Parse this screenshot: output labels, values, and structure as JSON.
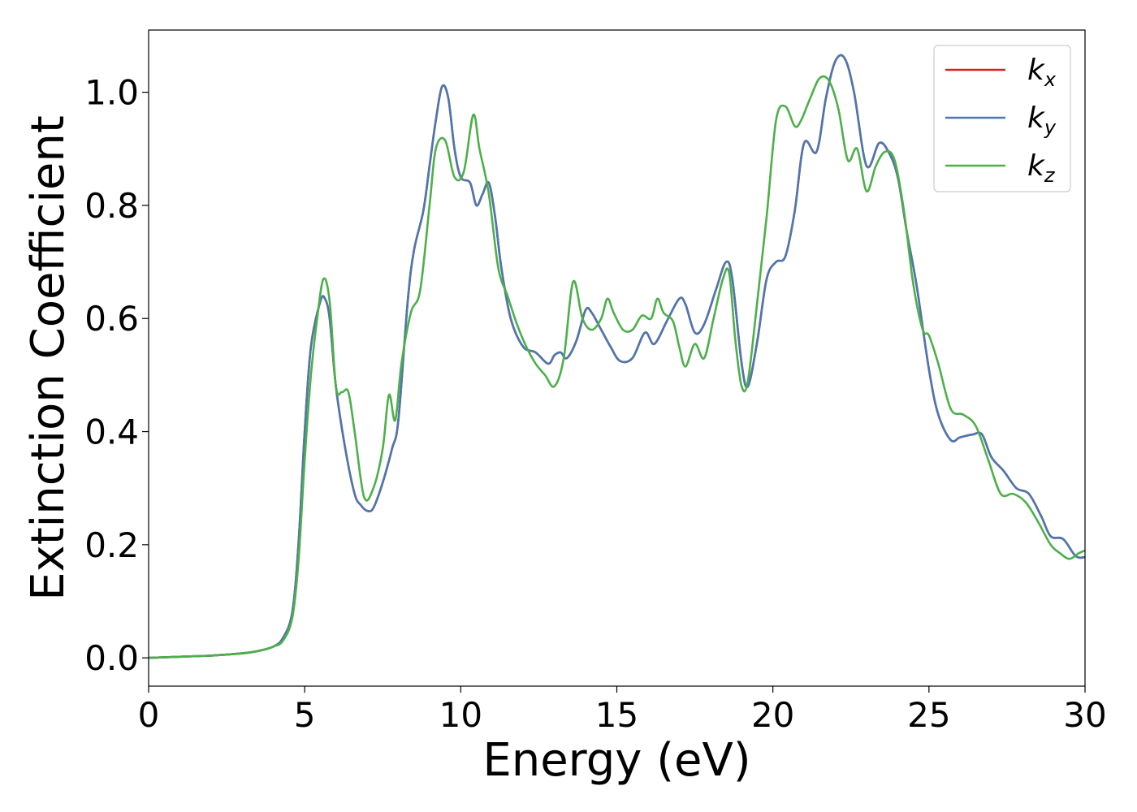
{
  "chart_data": {
    "type": "line",
    "title": "",
    "xlabel": "Energy (eV)",
    "ylabel": "Extinction Coefficient",
    "xlim": [
      0,
      30
    ],
    "ylim": [
      -0.05,
      1.11
    ],
    "xticks": [
      0,
      5,
      10,
      15,
      20,
      25,
      30
    ],
    "xtick_labels": [
      "0",
      "5",
      "10",
      "15",
      "20",
      "25",
      "30"
    ],
    "yticks": [
      0.0,
      0.2,
      0.4,
      0.6,
      0.8,
      1.0
    ],
    "ytick_labels": [
      "0.0",
      "0.2",
      "0.4",
      "0.6",
      "0.8",
      "1.0"
    ],
    "grid": false,
    "legend_position": "top-right",
    "series": [
      {
        "name": "k_x",
        "label_main": "k",
        "label_sub": "x",
        "color": "#e41a1c",
        "x": [
          0,
          1,
          2,
          3,
          3.5,
          4,
          4.3,
          4.6,
          4.8,
          5.0,
          5.2,
          5.5,
          5.65,
          5.8,
          6.0,
          6.3,
          6.6,
          6.8,
          7.0,
          7.2,
          7.5,
          7.8,
          8.0,
          8.3,
          8.5,
          8.8,
          9.0,
          9.2,
          9.4,
          9.6,
          9.8,
          10.0,
          10.3,
          10.5,
          10.7,
          10.9,
          11.1,
          11.3,
          11.6,
          12.0,
          12.4,
          12.8,
          13.0,
          13.2,
          13.4,
          13.7,
          14.0,
          14.2,
          14.5,
          14.8,
          15.1,
          15.5,
          15.9,
          16.2,
          16.6,
          17.0,
          17.2,
          17.5,
          17.8,
          18.2,
          18.5,
          18.7,
          19.0,
          19.2,
          19.5,
          19.8,
          20.1,
          20.4,
          20.7,
          21.0,
          21.4,
          21.7,
          22.0,
          22.3,
          22.6,
          23.0,
          23.4,
          23.7,
          24.0,
          24.3,
          24.6,
          25.0,
          25.3,
          25.7,
          26.0,
          26.4,
          26.7,
          27.0,
          27.4,
          27.8,
          28.2,
          28.6,
          28.9,
          29.3,
          29.7,
          30.0
        ],
        "y": [
          0.0,
          0.002,
          0.004,
          0.008,
          0.012,
          0.02,
          0.035,
          0.08,
          0.2,
          0.4,
          0.55,
          0.63,
          0.635,
          0.6,
          0.48,
          0.37,
          0.29,
          0.27,
          0.26,
          0.265,
          0.31,
          0.37,
          0.42,
          0.63,
          0.72,
          0.79,
          0.87,
          0.95,
          1.01,
          0.99,
          0.9,
          0.85,
          0.84,
          0.8,
          0.82,
          0.84,
          0.78,
          0.69,
          0.6,
          0.55,
          0.54,
          0.52,
          0.535,
          0.54,
          0.53,
          0.56,
          0.615,
          0.61,
          0.58,
          0.55,
          0.525,
          0.53,
          0.575,
          0.555,
          0.595,
          0.635,
          0.625,
          0.575,
          0.59,
          0.655,
          0.7,
          0.67,
          0.52,
          0.48,
          0.56,
          0.67,
          0.7,
          0.71,
          0.79,
          0.91,
          0.895,
          0.99,
          1.055,
          1.06,
          1.0,
          0.87,
          0.91,
          0.895,
          0.85,
          0.75,
          0.66,
          0.51,
          0.43,
          0.385,
          0.39,
          0.395,
          0.395,
          0.355,
          0.33,
          0.3,
          0.29,
          0.25,
          0.215,
          0.21,
          0.18,
          0.178
        ]
      },
      {
        "name": "k_y",
        "label_main": "k",
        "label_sub": "y",
        "color": "#4a78b0",
        "x": [
          0,
          1,
          2,
          3,
          3.5,
          4,
          4.3,
          4.6,
          4.8,
          5.0,
          5.2,
          5.5,
          5.65,
          5.8,
          6.0,
          6.3,
          6.6,
          6.8,
          7.0,
          7.2,
          7.5,
          7.8,
          8.0,
          8.3,
          8.5,
          8.8,
          9.0,
          9.2,
          9.4,
          9.6,
          9.8,
          10.0,
          10.3,
          10.5,
          10.7,
          10.9,
          11.1,
          11.3,
          11.6,
          12.0,
          12.4,
          12.8,
          13.0,
          13.2,
          13.4,
          13.7,
          14.0,
          14.2,
          14.5,
          14.8,
          15.1,
          15.5,
          15.9,
          16.2,
          16.6,
          17.0,
          17.2,
          17.5,
          17.8,
          18.2,
          18.5,
          18.7,
          19.0,
          19.2,
          19.5,
          19.8,
          20.1,
          20.4,
          20.7,
          21.0,
          21.4,
          21.7,
          22.0,
          22.3,
          22.6,
          23.0,
          23.4,
          23.7,
          24.0,
          24.3,
          24.6,
          25.0,
          25.3,
          25.7,
          26.0,
          26.4,
          26.7,
          27.0,
          27.4,
          27.8,
          28.2,
          28.6,
          28.9,
          29.3,
          29.7,
          30.0
        ],
        "y": [
          0.0,
          0.002,
          0.004,
          0.008,
          0.012,
          0.02,
          0.035,
          0.08,
          0.2,
          0.4,
          0.55,
          0.63,
          0.635,
          0.6,
          0.48,
          0.37,
          0.29,
          0.27,
          0.26,
          0.265,
          0.31,
          0.37,
          0.42,
          0.63,
          0.72,
          0.79,
          0.87,
          0.95,
          1.01,
          0.99,
          0.9,
          0.85,
          0.84,
          0.8,
          0.82,
          0.84,
          0.78,
          0.69,
          0.6,
          0.55,
          0.54,
          0.52,
          0.535,
          0.54,
          0.53,
          0.56,
          0.615,
          0.61,
          0.58,
          0.55,
          0.525,
          0.53,
          0.575,
          0.555,
          0.595,
          0.635,
          0.625,
          0.575,
          0.59,
          0.655,
          0.7,
          0.67,
          0.52,
          0.48,
          0.56,
          0.67,
          0.7,
          0.71,
          0.79,
          0.91,
          0.895,
          0.99,
          1.055,
          1.06,
          1.0,
          0.87,
          0.91,
          0.895,
          0.85,
          0.75,
          0.66,
          0.51,
          0.43,
          0.385,
          0.39,
          0.395,
          0.395,
          0.355,
          0.33,
          0.3,
          0.29,
          0.25,
          0.215,
          0.21,
          0.18,
          0.178
        ]
      },
      {
        "name": "k_z",
        "label_main": "k",
        "label_sub": "z",
        "color": "#4daf4a",
        "x": [
          0,
          1,
          2,
          3,
          3.5,
          4,
          4.3,
          4.6,
          4.8,
          5.0,
          5.2,
          5.4,
          5.6,
          5.8,
          6.0,
          6.2,
          6.4,
          6.6,
          6.9,
          7.2,
          7.5,
          7.7,
          7.9,
          8.1,
          8.4,
          8.7,
          9.0,
          9.2,
          9.5,
          9.8,
          10.1,
          10.4,
          10.6,
          10.9,
          11.2,
          11.5,
          11.8,
          12.1,
          12.4,
          12.7,
          13.0,
          13.3,
          13.6,
          13.9,
          14.2,
          14.5,
          14.7,
          14.9,
          15.2,
          15.5,
          15.8,
          16.1,
          16.3,
          16.5,
          16.8,
          17.0,
          17.2,
          17.5,
          17.8,
          18.1,
          18.4,
          18.6,
          18.8,
          19.0,
          19.2,
          19.5,
          19.8,
          20.1,
          20.4,
          20.7,
          20.9,
          21.2,
          21.5,
          21.8,
          22.1,
          22.4,
          22.7,
          23.0,
          23.3,
          23.6,
          23.9,
          24.2,
          24.5,
          24.8,
          25.0,
          25.3,
          25.7,
          26.1,
          26.5,
          26.9,
          27.3,
          27.7,
          28.1,
          28.5,
          28.9,
          29.2,
          29.5,
          29.8,
          30.0
        ],
        "y": [
          0.0,
          0.002,
          0.004,
          0.008,
          0.012,
          0.02,
          0.03,
          0.07,
          0.17,
          0.35,
          0.5,
          0.6,
          0.67,
          0.63,
          0.48,
          0.47,
          0.47,
          0.4,
          0.285,
          0.3,
          0.37,
          0.465,
          0.42,
          0.52,
          0.61,
          0.65,
          0.8,
          0.9,
          0.915,
          0.85,
          0.86,
          0.96,
          0.9,
          0.82,
          0.69,
          0.64,
          0.59,
          0.55,
          0.52,
          0.5,
          0.48,
          0.53,
          0.665,
          0.6,
          0.58,
          0.6,
          0.635,
          0.61,
          0.58,
          0.58,
          0.605,
          0.6,
          0.635,
          0.61,
          0.595,
          0.55,
          0.515,
          0.555,
          0.53,
          0.6,
          0.67,
          0.68,
          0.56,
          0.48,
          0.49,
          0.63,
          0.78,
          0.95,
          0.975,
          0.94,
          0.95,
          0.99,
          1.025,
          1.02,
          0.97,
          0.88,
          0.9,
          0.825,
          0.87,
          0.895,
          0.88,
          0.79,
          0.66,
          0.58,
          0.57,
          0.52,
          0.44,
          0.43,
          0.41,
          0.35,
          0.29,
          0.29,
          0.275,
          0.24,
          0.2,
          0.185,
          0.175,
          0.185,
          0.19
        ]
      }
    ]
  }
}
